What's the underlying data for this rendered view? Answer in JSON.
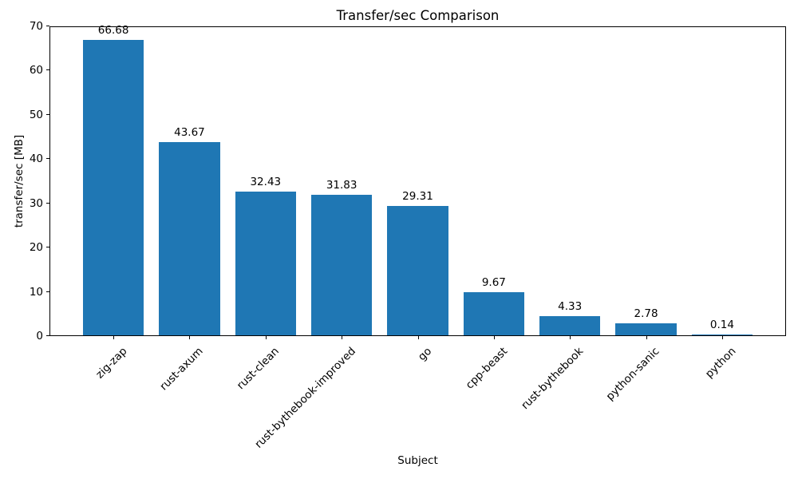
{
  "chart_data": {
    "type": "bar",
    "title": "Transfer/sec Comparison",
    "xlabel": "Subject",
    "ylabel": "transfer/sec [MB]",
    "categories": [
      "zig-zap",
      "rust-axum",
      "rust-clean",
      "rust-bythebook-improved",
      "go",
      "cpp-beast",
      "rust-bythebook",
      "python-sanic",
      "python"
    ],
    "values": [
      66.68,
      43.67,
      32.43,
      31.83,
      29.31,
      9.67,
      4.33,
      2.78,
      0.14
    ],
    "value_labels": [
      "66.68",
      "43.67",
      "32.43",
      "31.83",
      "29.31",
      "9.67",
      "4.33",
      "2.78",
      "0.14"
    ],
    "ylim": [
      0,
      70
    ],
    "yticks": [
      0,
      10,
      20,
      30,
      40,
      50,
      60,
      70
    ],
    "bar_color": "#1f77b4",
    "grid": false,
    "legend_position": "none"
  }
}
